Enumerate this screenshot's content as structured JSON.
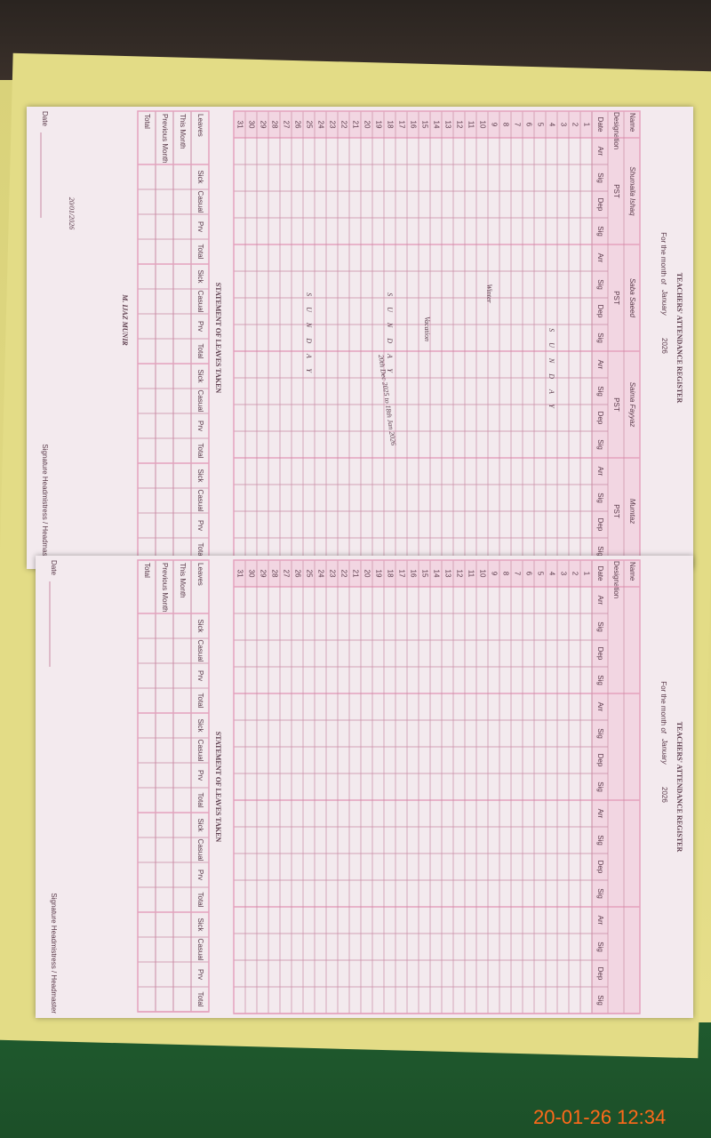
{
  "timestamp": "20-01-26 12:34",
  "pages": [
    {
      "title": "TEACHERS' ATTENDANCE REGISTER",
      "month_label": "For the month of",
      "month": "January",
      "year": "2026",
      "name_label": "Name",
      "designation_label": "Designation",
      "column_headers": [
        "Date",
        "Arr",
        "Sig",
        "Dep",
        "Sig"
      ],
      "names": [
        "Shumaila Ishaq",
        "Saba Saeed",
        "Saima Fayyaz",
        "Mumtaz"
      ],
      "designations": [
        "PST",
        "PST",
        "PST",
        "PST"
      ],
      "days": [
        1,
        2,
        3,
        4,
        5,
        6,
        7,
        8,
        9,
        10,
        11,
        12,
        13,
        14,
        15,
        16,
        17,
        18,
        19,
        20,
        21,
        22,
        23,
        24,
        25,
        26,
        27,
        28,
        29,
        30,
        31
      ],
      "leaves_title": "STATEMENT OF LEAVES TAKEN",
      "leave_headers": [
        "Sick",
        "Casual",
        "Prv",
        "Total"
      ],
      "leave_rows": [
        "Leaves",
        "This Month",
        "Previous Month",
        "Total"
      ],
      "date_label": "Date",
      "signature_label": "Signature Headmistress / Headmaster",
      "annotations": [
        "Winter",
        "Vacation",
        "20th Dec 2025 to 18th Jan 2026",
        "SUNDAY",
        "SUNDAY",
        "SUNDAY",
        "M. IJAZ MUNIR",
        "20/01/2026"
      ]
    },
    {
      "title": "TEACHERS' ATTENDANCE REGISTER",
      "month_label": "For the month of",
      "month": "January",
      "year": "2026",
      "name_label": "Name",
      "designation_label": "Designation",
      "column_headers": [
        "Date",
        "Arr",
        "Sig",
        "Dep",
        "Sig"
      ],
      "days": [
        1,
        2,
        3,
        4,
        5,
        6,
        7,
        8,
        9,
        10,
        11,
        12,
        13,
        14,
        15,
        16,
        17,
        18,
        19,
        20,
        21,
        22,
        23,
        24,
        25,
        26,
        27,
        28,
        29,
        30,
        31
      ],
      "leaves_title": "STATEMENT OF LEAVES TAKEN",
      "leave_headers": [
        "Sick",
        "Casual",
        "Prv",
        "Total"
      ],
      "leave_rows": [
        "Leaves",
        "This Month",
        "Previous Month",
        "Total"
      ],
      "date_label": "Date",
      "signature_label": "Signature Headmistress / Headmaster"
    }
  ]
}
